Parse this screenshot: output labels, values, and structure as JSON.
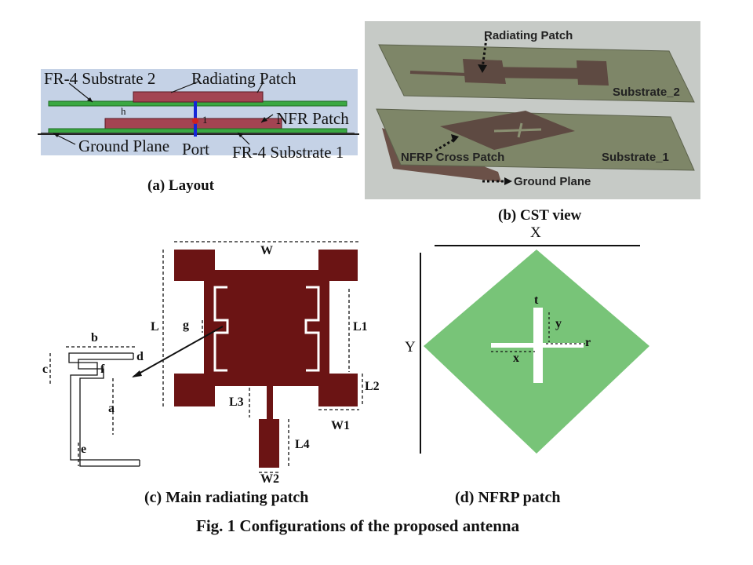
{
  "panel_a": {
    "caption": "(a) Layout",
    "labels": {
      "substrate2": "FR-4 Substrate 2",
      "radiating_patch": "Radiating Patch",
      "h": "h",
      "nfr_patch": "NFR Patch",
      "ground_plane": "Ground Plane",
      "port": "Port",
      "substrate1": "FR-4 Substrate 1"
    },
    "colors": {
      "background": "#c5d2e6",
      "substrate": "#3aa842",
      "patch": "#a34452",
      "feed": "#1426d8"
    }
  },
  "panel_b": {
    "caption": "(b) CST view",
    "labels": {
      "radiating_patch": "Radiating Patch",
      "substrate2": "Substrate_2",
      "nfrp_cross_patch": "NFRP Cross Patch",
      "substrate1": "Substrate_1",
      "ground_plane": "Ground Plane"
    },
    "colors": {
      "background": "#c6cac6",
      "substrate": "#7e8668",
      "patch": "#5e4a42"
    }
  },
  "panel_c": {
    "caption": "(c) Main radiating patch",
    "dimensions": [
      "W",
      "L",
      "L1",
      "g",
      "L2",
      "L3",
      "W1",
      "L4",
      "W2",
      "b",
      "d",
      "c",
      "f",
      "a",
      "e"
    ],
    "colors": {
      "patch": "#6b1414"
    }
  },
  "panel_d": {
    "caption": "(d) NFRP patch",
    "dimensions": [
      "X",
      "Y",
      "t",
      "y",
      "r",
      "x"
    ],
    "colors": {
      "patch": "#78c478"
    }
  },
  "figure_caption": "Fig. 1 Configurations of the proposed antenna"
}
